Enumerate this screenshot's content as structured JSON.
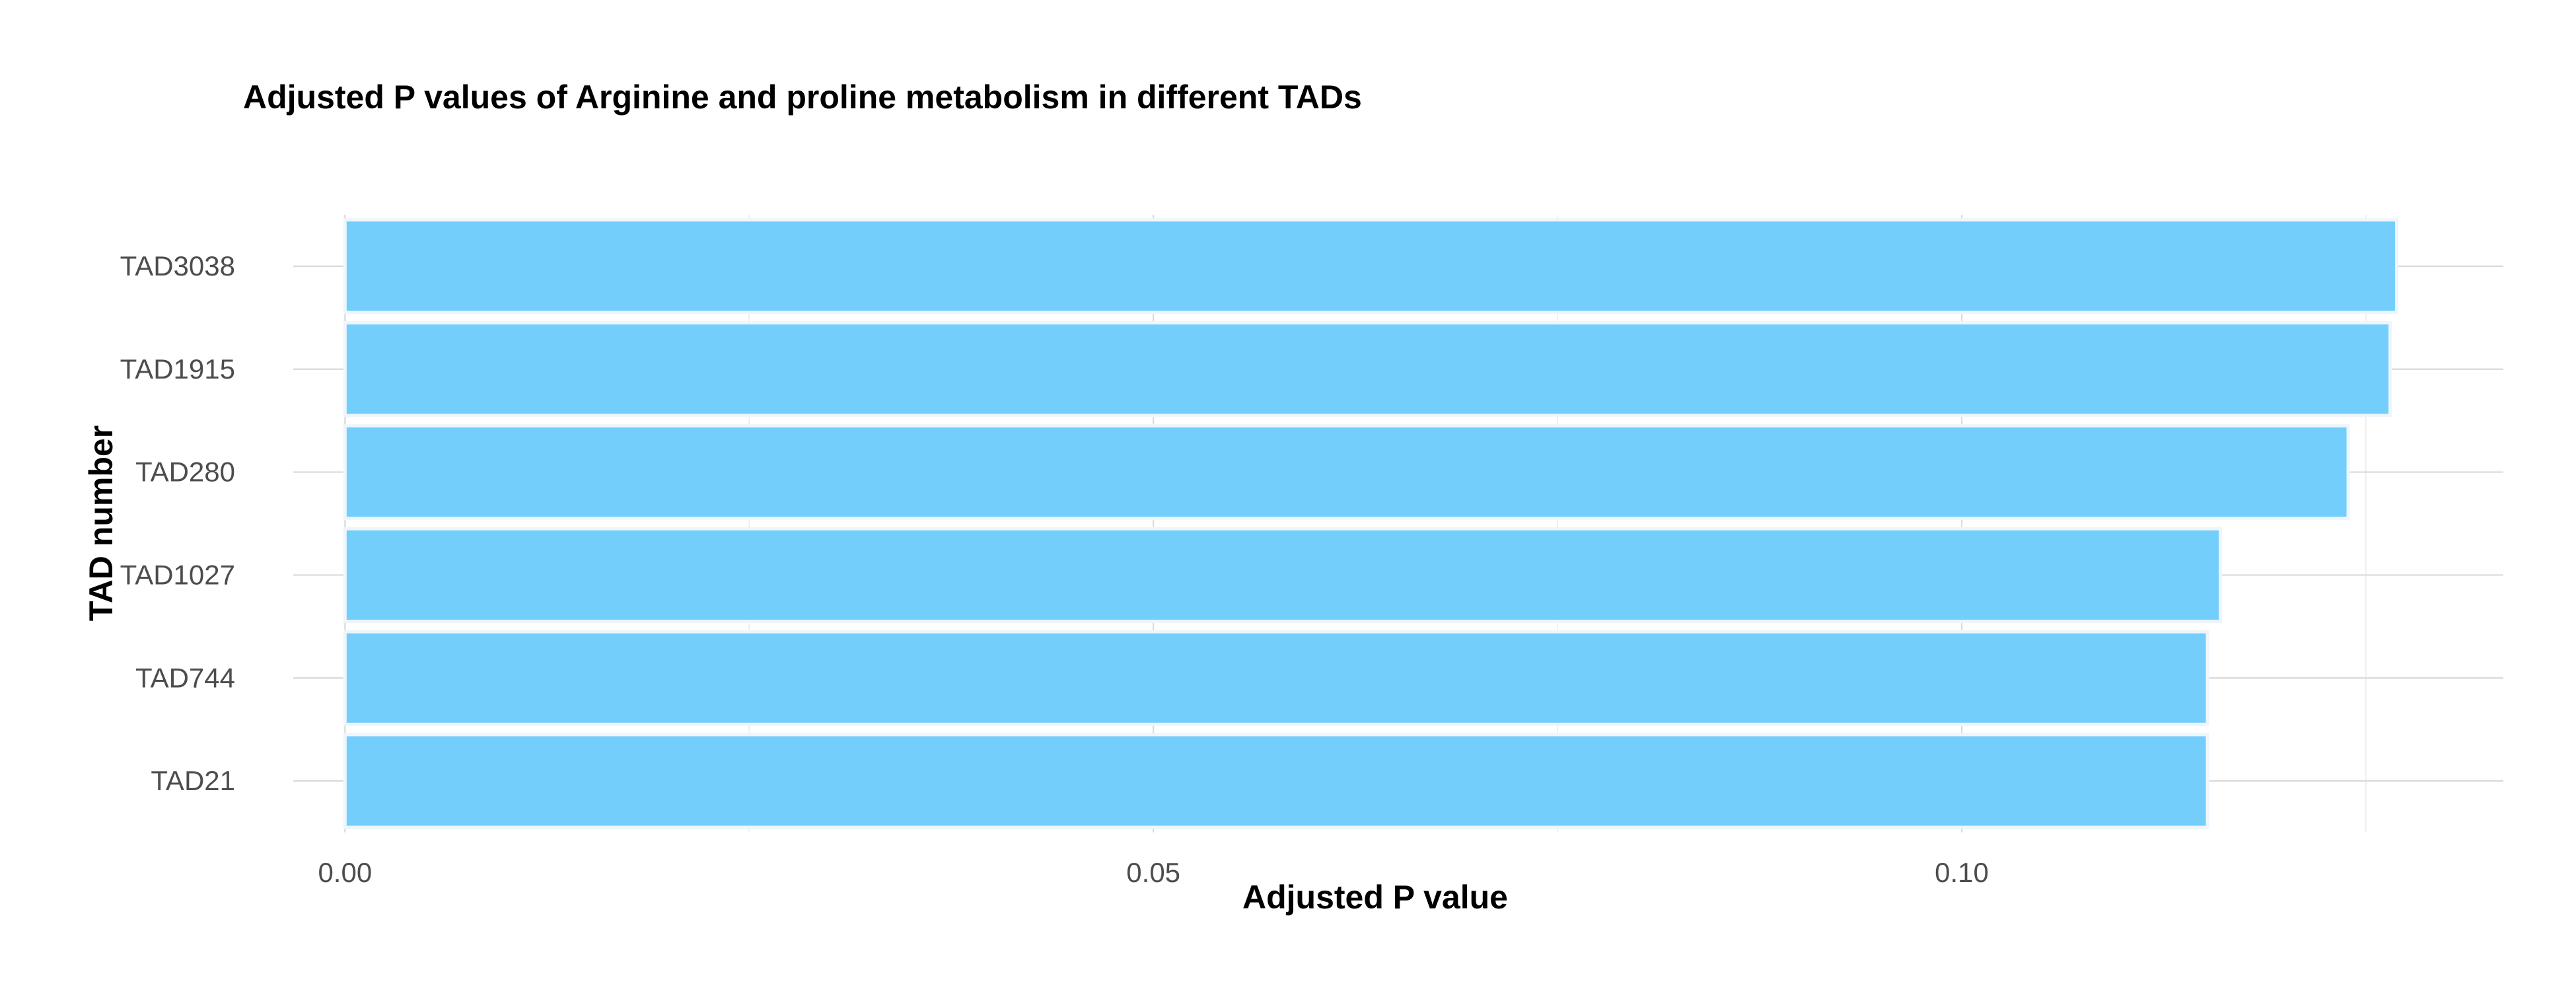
{
  "chart_data": {
    "type": "bar",
    "orientation": "horizontal",
    "title": "Adjusted P values of Arginine and proline metabolism in different TADs",
    "xlabel": "Adjusted P value",
    "ylabel": "TAD number",
    "categories": [
      "TAD3038",
      "TAD1915",
      "TAD280",
      "TAD1027",
      "TAD744",
      "TAD21"
    ],
    "values": [
      0.1269,
      0.1265,
      0.1239,
      0.116,
      0.1152,
      0.1152
    ],
    "xlim": [
      -0.0032,
      0.1335
    ],
    "xticks": [
      0.0,
      0.05,
      0.1
    ],
    "xtick_labels": [
      "0.00",
      "0.05",
      "0.10"
    ],
    "grid": true,
    "legend": "none",
    "colors": {
      "bar_fill": "#73CEFB",
      "bar_outline": "#EEF6FB",
      "grid_major": "#D9D9D9",
      "grid_minor": "#ECECEC"
    }
  }
}
